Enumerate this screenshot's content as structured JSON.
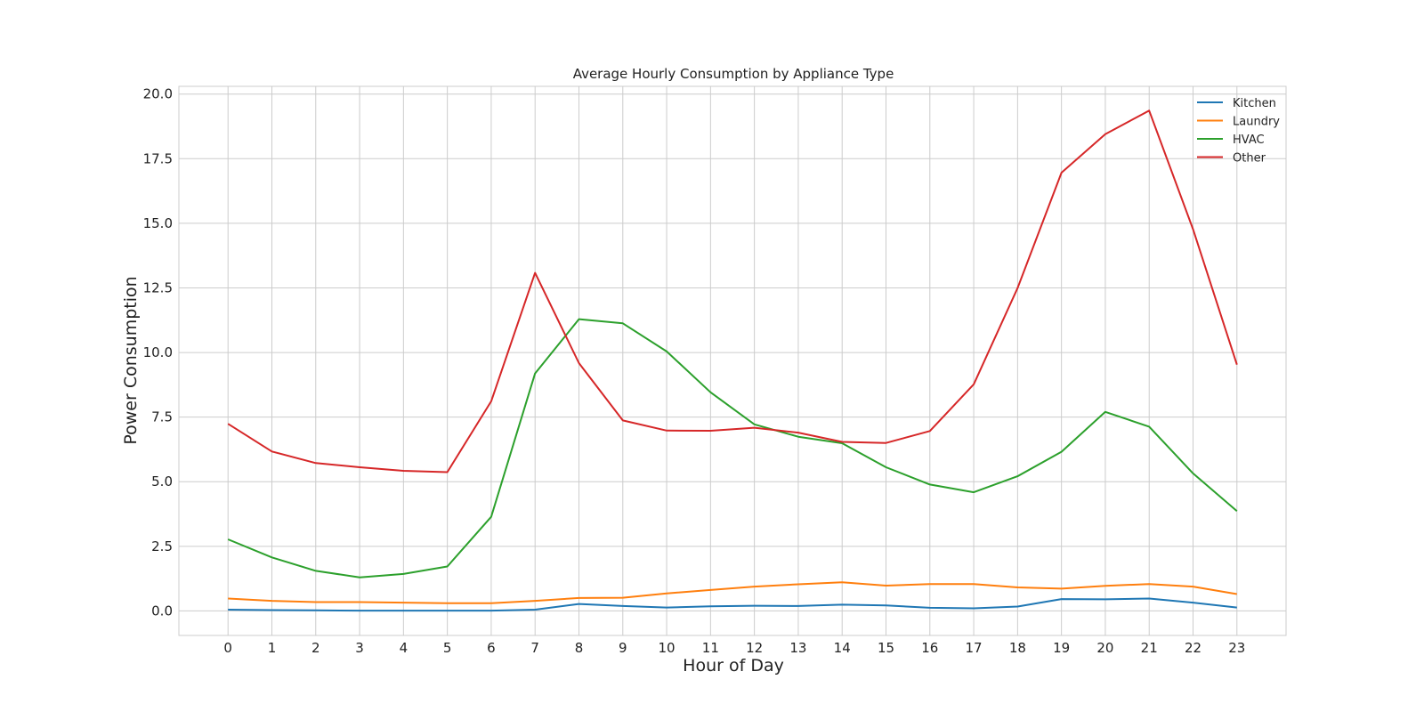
{
  "chart_data": {
    "type": "line",
    "title": "Average Hourly Consumption by Appliance Type",
    "xlabel": "Hour of Day",
    "ylabel": "Power Consumption",
    "x": [
      0,
      1,
      2,
      3,
      4,
      5,
      6,
      7,
      8,
      9,
      10,
      11,
      12,
      13,
      14,
      15,
      16,
      17,
      18,
      19,
      20,
      21,
      22,
      23
    ],
    "x_tick_labels": [
      "0",
      "1",
      "2",
      "3",
      "4",
      "5",
      "6",
      "7",
      "8",
      "9",
      "10",
      "11",
      "12",
      "13",
      "14",
      "15",
      "16",
      "17",
      "18",
      "19",
      "20",
      "21",
      "22",
      "23"
    ],
    "ylim": [
      -0.95,
      20.3
    ],
    "xlim": [
      -1.12,
      24.12
    ],
    "y_ticks": [
      0.0,
      2.5,
      5.0,
      7.5,
      10.0,
      12.5,
      15.0,
      17.5,
      20.0
    ],
    "y_tick_labels": [
      "0.0",
      "2.5",
      "5.0",
      "7.5",
      "10.0",
      "12.5",
      "15.0",
      "17.5",
      "20.0"
    ],
    "grid": true,
    "legend_position": "top-right",
    "series": [
      {
        "name": "Kitchen",
        "color": "#1f77b4",
        "values": [
          0.05,
          0.03,
          0.02,
          0.01,
          0.01,
          0.01,
          0.01,
          0.05,
          0.27,
          0.19,
          0.13,
          0.18,
          0.2,
          0.19,
          0.24,
          0.21,
          0.12,
          0.1,
          0.17,
          0.46,
          0.45,
          0.48,
          0.32,
          0.13
        ]
      },
      {
        "name": "Laundry",
        "color": "#ff7f0e",
        "values": [
          0.48,
          0.39,
          0.34,
          0.34,
          0.32,
          0.3,
          0.3,
          0.39,
          0.5,
          0.51,
          0.68,
          0.81,
          0.94,
          1.03,
          1.11,
          0.98,
          1.04,
          1.04,
          0.91,
          0.86,
          0.97,
          1.04,
          0.94,
          0.65
        ]
      },
      {
        "name": "HVAC",
        "color": "#2ca02c",
        "values": [
          2.77,
          2.07,
          1.55,
          1.3,
          1.43,
          1.72,
          3.64,
          9.19,
          11.29,
          11.13,
          10.04,
          8.46,
          7.22,
          6.74,
          6.49,
          5.56,
          4.89,
          4.59,
          5.21,
          6.16,
          7.7,
          7.13,
          5.32,
          3.86
        ]
      },
      {
        "name": "Other",
        "color": "#d62728",
        "values": [
          7.24,
          6.17,
          5.72,
          5.56,
          5.42,
          5.37,
          8.11,
          13.08,
          9.59,
          7.37,
          6.98,
          6.97,
          7.09,
          6.9,
          6.54,
          6.5,
          6.96,
          8.77,
          12.5,
          16.96,
          18.45,
          19.36,
          14.77,
          9.53
        ]
      }
    ]
  }
}
